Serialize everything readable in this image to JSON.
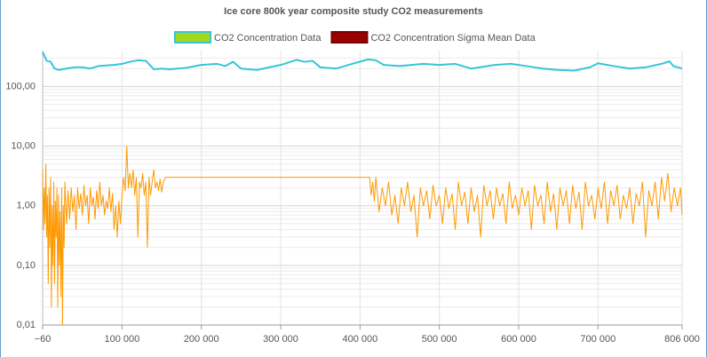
{
  "chart_data": {
    "type": "line",
    "title": "Ice core 800k year composite study CO2 measurements",
    "xlim": [
      -60,
      806000
    ],
    "xticks": [
      {
        "value": -60,
        "label": "−60"
      },
      {
        "value": 100000,
        "label": "100 000"
      },
      {
        "value": 200000,
        "label": "200 000"
      },
      {
        "value": 300000,
        "label": "300 000"
      },
      {
        "value": 400000,
        "label": "400 000"
      },
      {
        "value": 500000,
        "label": "500 000"
      },
      {
        "value": 600000,
        "label": "600 000"
      },
      {
        "value": 700000,
        "label": "700 000"
      },
      {
        "value": 806000,
        "label": "806 000"
      }
    ],
    "ylim": [
      0.01,
      400
    ],
    "yticks": [
      {
        "value": 0.01,
        "label": "0,01"
      },
      {
        "value": 0.1,
        "label": "0,10"
      },
      {
        "value": 1,
        "label": "1,00"
      },
      {
        "value": 10,
        "label": "10,00"
      },
      {
        "value": 100,
        "label": "100,00"
      }
    ],
    "log_scale": "y",
    "grid": true,
    "legend": "top",
    "series": [
      {
        "name": "CO2 Concentration Data",
        "color": "#36c5d8",
        "legend_fill": "#a4d81c",
        "legend_border": "#36c5d8",
        "x": [
          0,
          5000,
          10000,
          15000,
          20000,
          30000,
          40000,
          50000,
          60000,
          70000,
          80000,
          90000,
          100000,
          110000,
          120000,
          130000,
          135000,
          140000,
          150000,
          160000,
          180000,
          200000,
          220000,
          230000,
          240000,
          250000,
          270000,
          300000,
          320000,
          330000,
          340000,
          350000,
          370000,
          390000,
          410000,
          420000,
          430000,
          450000,
          480000,
          500000,
          520000,
          540000,
          570000,
          590000,
          610000,
          630000,
          650000,
          670000,
          690000,
          700000,
          720000,
          740000,
          760000,
          780000,
          790000,
          795000,
          806000
        ],
        "values": [
          380,
          270,
          260,
          200,
          190,
          200,
          210,
          210,
          200,
          220,
          225,
          230,
          240,
          260,
          275,
          270,
          230,
          195,
          200,
          195,
          205,
          230,
          240,
          220,
          260,
          200,
          190,
          230,
          280,
          260,
          270,
          210,
          200,
          240,
          285,
          275,
          230,
          220,
          240,
          230,
          240,
          200,
          230,
          240,
          220,
          200,
          190,
          185,
          210,
          245,
          220,
          200,
          210,
          240,
          265,
          220,
          200
        ]
      },
      {
        "name": "CO2 Concentration Sigma Mean Data",
        "color": "#ff9900",
        "legend_fill": "#990000",
        "legend_border": "#7a0000",
        "x": [
          0,
          1000,
          2000,
          3000,
          4000,
          5000,
          6000,
          7000,
          8000,
          9000,
          10000,
          11000,
          12000,
          13000,
          14000,
          15000,
          16000,
          17000,
          18000,
          19000,
          20000,
          21000,
          22000,
          23000,
          24000,
          25000,
          26000,
          27000,
          28000,
          30000,
          32000,
          34000,
          36000,
          38000,
          40000,
          42000,
          44000,
          46000,
          48000,
          50000,
          52000,
          54000,
          56000,
          58000,
          60000,
          62000,
          64000,
          66000,
          68000,
          70000,
          72000,
          74000,
          76000,
          78000,
          80000,
          82000,
          84000,
          86000,
          88000,
          90000,
          92000,
          94000,
          96000,
          98000,
          100000,
          102000,
          104000,
          106000,
          108000,
          110000,
          112000,
          114000,
          116000,
          118000,
          120000,
          122000,
          124000,
          126000,
          128000,
          130000,
          132000,
          134000,
          136000,
          138000,
          140000,
          142000,
          144000,
          146000,
          148000,
          150000,
          152000,
          155000,
          412000,
          414000,
          416000,
          418000,
          420000,
          424000,
          428000,
          432000,
          436000,
          440000,
          444000,
          448000,
          452000,
          456000,
          460000,
          464000,
          468000,
          472000,
          476000,
          480000,
          484000,
          488000,
          492000,
          496000,
          500000,
          504000,
          508000,
          512000,
          516000,
          520000,
          524000,
          528000,
          532000,
          536000,
          540000,
          544000,
          548000,
          552000,
          556000,
          560000,
          564000,
          568000,
          572000,
          576000,
          580000,
          584000,
          588000,
          592000,
          596000,
          600000,
          604000,
          608000,
          612000,
          616000,
          620000,
          624000,
          628000,
          632000,
          636000,
          640000,
          644000,
          648000,
          652000,
          656000,
          660000,
          664000,
          668000,
          672000,
          676000,
          680000,
          684000,
          688000,
          692000,
          696000,
          700000,
          704000,
          708000,
          712000,
          716000,
          720000,
          724000,
          728000,
          732000,
          736000,
          740000,
          744000,
          748000,
          752000,
          756000,
          760000,
          764000,
          768000,
          772000,
          776000,
          780000,
          784000,
          788000,
          792000,
          796000,
          800000,
          804000,
          806000
        ],
        "values": [
          4,
          0.4,
          2,
          0.5,
          5,
          0.3,
          1.5,
          0.05,
          2,
          0.2,
          3,
          0.02,
          1,
          0.1,
          2.5,
          0.05,
          1.2,
          0.3,
          2,
          0.02,
          1.5,
          0.1,
          0.8,
          0.03,
          2,
          0.01,
          1,
          0.2,
          2.5,
          0.5,
          1.8,
          0.6,
          2,
          0.8,
          1.5,
          0.4,
          2,
          0.9,
          1.6,
          0.7,
          2.2,
          1,
          1.5,
          0.5,
          2,
          1,
          1.4,
          0.6,
          1.8,
          0.9,
          2.5,
          1,
          1.5,
          0.7,
          1.2,
          0.9,
          2,
          0.8,
          1.6,
          0.4,
          1,
          0.3,
          1.2,
          0.5,
          1.5,
          3,
          1.8,
          10,
          2,
          3.5,
          2,
          4,
          1.5,
          3,
          0.3,
          2.5,
          2,
          3.5,
          1.5,
          2.5,
          0.2,
          3,
          1.5,
          2.5,
          4,
          2,
          2.5,
          1.8,
          2.8,
          1.7,
          2.5,
          3,
          3,
          1.5,
          2.5,
          1.2,
          3,
          0.8,
          2,
          1,
          2.5,
          0.7,
          1.5,
          0.5,
          2,
          1,
          2.5,
          0.8,
          1.5,
          0.3,
          2,
          1,
          1.8,
          0.6,
          2.2,
          1,
          1.5,
          0.5,
          2,
          0.9,
          1.6,
          0.4,
          2.5,
          1,
          1.7,
          0.5,
          2,
          0.8,
          1.5,
          0.3,
          2.2,
          1,
          1.8,
          0.6,
          2,
          1,
          1.6,
          0.5,
          2.5,
          0.9,
          1.5,
          0.7,
          2,
          1,
          1.8,
          0.4,
          2.2,
          1,
          1.5,
          0.5,
          2.5,
          0.8,
          1.6,
          0.4,
          2,
          1,
          1.8,
          0.5,
          2.2,
          0.9,
          1.7,
          0.4,
          2.5,
          1,
          1.5,
          0.6,
          2,
          0.9,
          2.5,
          0.5,
          1.8,
          1,
          2.2,
          0.6,
          1.5,
          0.9,
          2,
          0.5,
          1.6,
          1,
          2.5,
          0.3,
          1.8,
          1,
          2.5,
          0.6,
          3,
          1.2,
          3.5,
          0.8,
          2,
          1,
          2,
          0.7
        ]
      }
    ]
  }
}
